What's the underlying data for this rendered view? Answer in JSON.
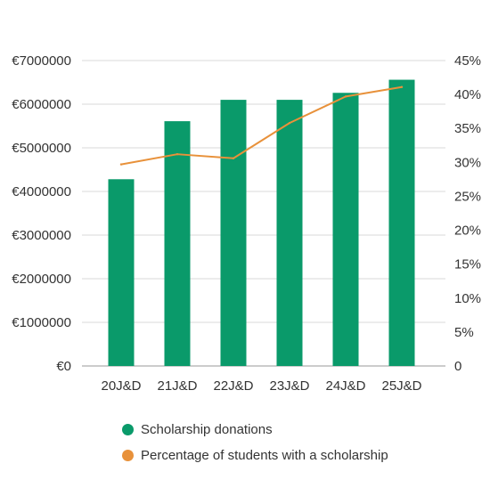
{
  "chart_data": {
    "type": "bar",
    "categories": [
      "20J&D",
      "21J&D",
      "22J&D",
      "23J&D",
      "24J&D",
      "25J&D"
    ],
    "series": [
      {
        "name": "Scholarship donations",
        "type": "bar",
        "axis": "left",
        "color": "#0a9a6a",
        "values": [
          4280000,
          5610000,
          6100000,
          6100000,
          6260000,
          6560000
        ]
      },
      {
        "name": "Percentage of students with a scholarship",
        "type": "line",
        "axis": "right",
        "color": "#e8913a",
        "values": [
          29.7,
          31.2,
          30.6,
          35.8,
          39.7,
          41.1
        ]
      }
    ],
    "y_left": {
      "ylim": [
        0,
        7000000
      ],
      "ticks": [
        0,
        1000000,
        2000000,
        3000000,
        4000000,
        5000000,
        6000000,
        7000000
      ],
      "tick_labels": [
        "€0",
        "€1000000",
        "€2000000",
        "€3000000",
        "€4000000",
        "€5000000",
        "€6000000",
        "€7000000"
      ]
    },
    "y_right": {
      "ylim": [
        0,
        45
      ],
      "ticks": [
        0,
        5,
        10,
        15,
        20,
        25,
        30,
        35,
        40,
        45
      ],
      "tick_labels": [
        "0",
        "5%",
        "10%",
        "15%",
        "20%",
        "25%",
        "30%",
        "35%",
        "40%",
        "45%"
      ]
    },
    "grid": true,
    "legend_position": "bottom"
  }
}
